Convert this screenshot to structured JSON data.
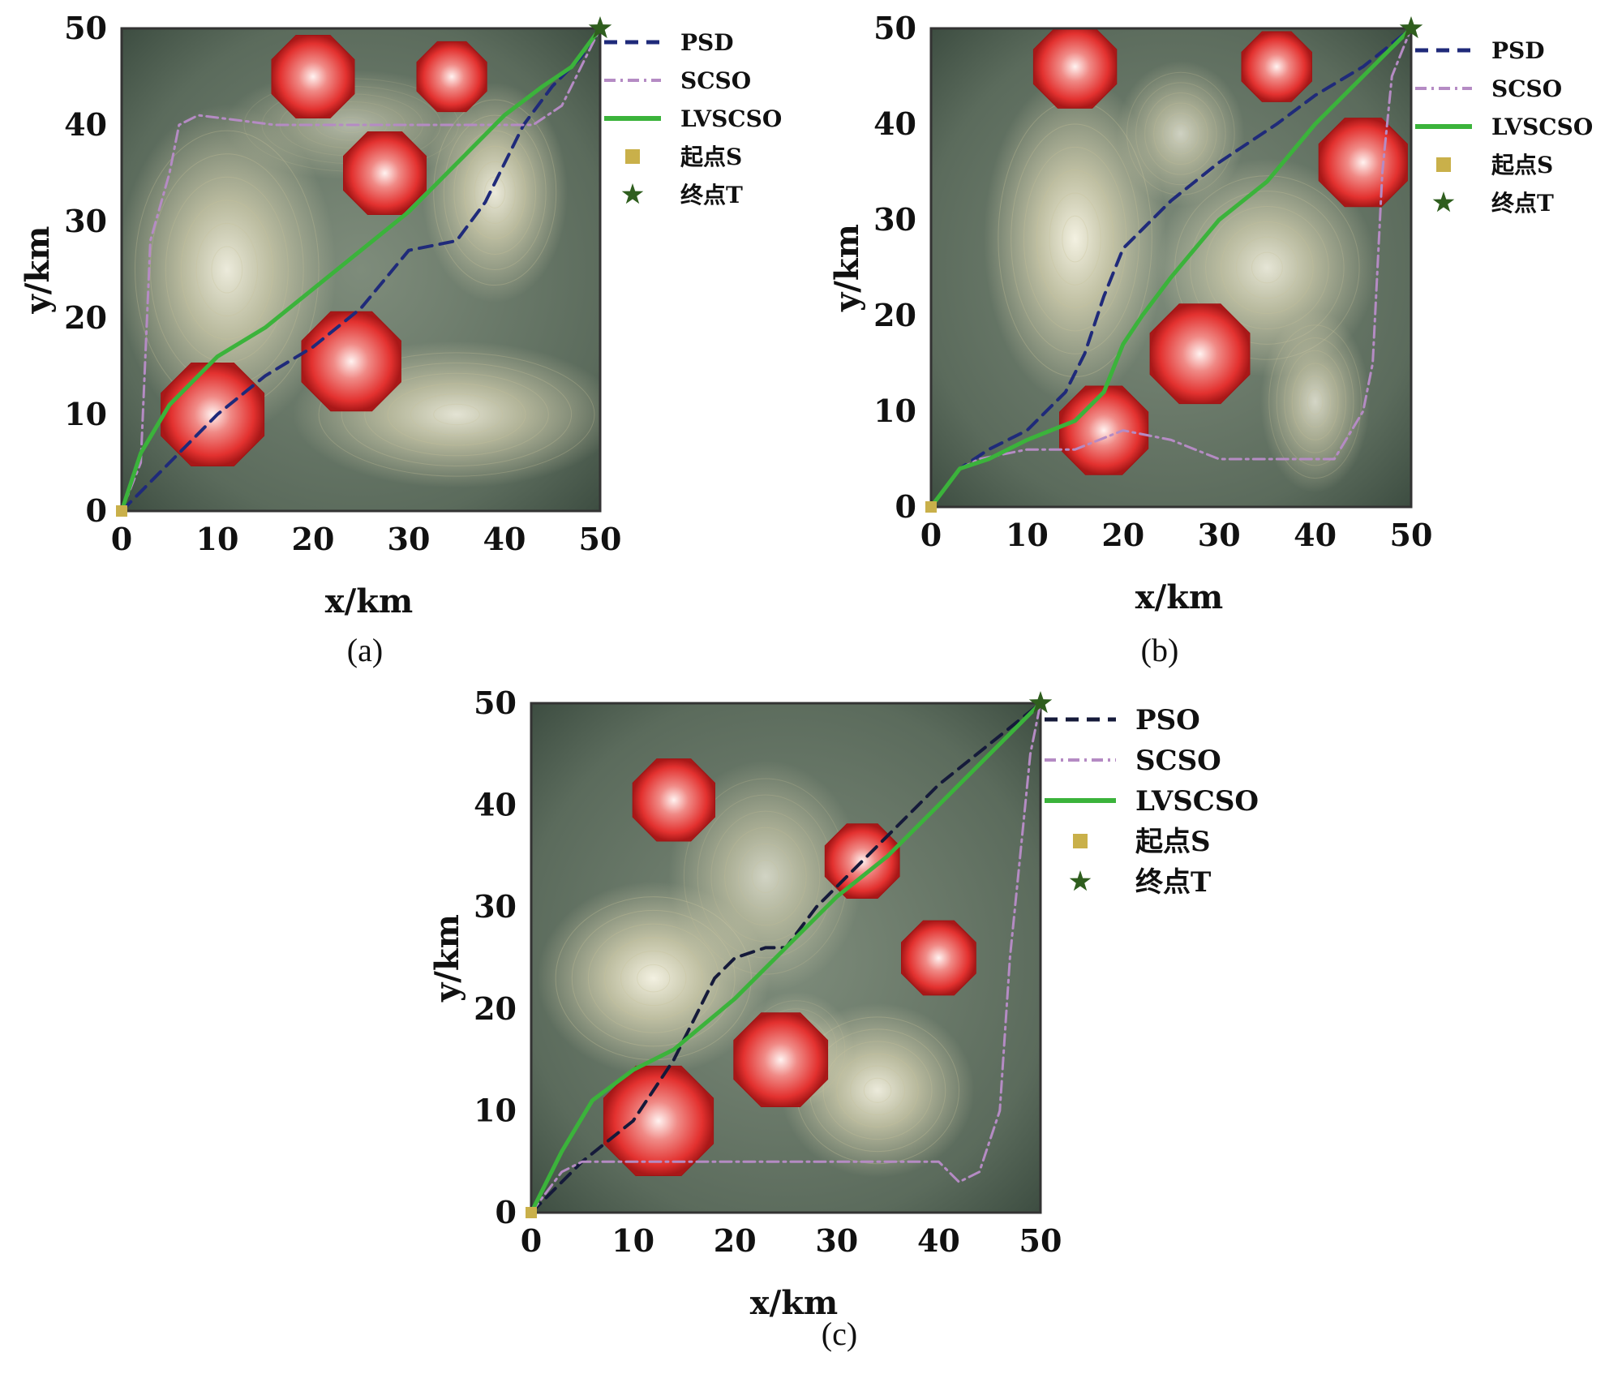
{
  "figure": {
    "panel_labels": [
      "(a)",
      "(b)",
      "(c)"
    ]
  },
  "colors": {
    "psd_line": "#1f2a7a",
    "pso_line": "#151a3a",
    "scso_line": "#b58bc4",
    "lvscso_line": "#3bb33b",
    "start_marker": "#c9b04a",
    "end_marker": "#2f5e1e",
    "threat_fill": "#e3312f",
    "terrain_dark": "#3e4e42",
    "terrain_light": "#e2dcba"
  },
  "icons": {
    "start": "square-marker",
    "end": "star-marker"
  },
  "chart_data": [
    {
      "type": "line",
      "panel": "(a)",
      "xlabel": "x/km",
      "ylabel": "y/km",
      "xlim": [
        0,
        50
      ],
      "ylim": [
        0,
        50
      ],
      "xticks": [
        "0",
        "10",
        "20",
        "30",
        "40",
        "50"
      ],
      "yticks": [
        "0",
        "10",
        "20",
        "30",
        "40",
        "50"
      ],
      "legend_position": "right",
      "legend": [
        "PSD",
        "SCSO",
        "LVSCSO",
        "起点S",
        "终点T"
      ],
      "series": [
        {
          "name": "PSD",
          "style": "dashed",
          "x": [
            0,
            5,
            10,
            15,
            20,
            25,
            30,
            35,
            38,
            42,
            45,
            48,
            50
          ],
          "y": [
            0,
            5,
            10,
            14,
            17,
            21,
            27,
            28,
            32,
            40,
            44,
            47,
            50
          ]
        },
        {
          "name": "SCSO",
          "style": "dashdot",
          "x": [
            0,
            2,
            3,
            5,
            6,
            8,
            16,
            22,
            30,
            37,
            43,
            46,
            48,
            50
          ],
          "y": [
            0,
            5,
            28,
            35,
            40,
            41,
            40,
            40,
            40,
            40,
            40,
            42,
            46,
            50
          ]
        },
        {
          "name": "LVSCSO",
          "style": "solid",
          "x": [
            0,
            2,
            5,
            10,
            15,
            20,
            25,
            30,
            35,
            40,
            44,
            47,
            50
          ],
          "y": [
            0,
            6,
            11,
            16,
            19,
            23,
            27,
            31,
            36,
            41,
            44,
            46,
            50
          ]
        }
      ],
      "start": {
        "label": "起点S",
        "x": 0,
        "y": 0
      },
      "end": {
        "label": "终点T",
        "x": 50,
        "y": 50
      },
      "threats": [
        {
          "x": 20,
          "y": 45,
          "r": 4.5
        },
        {
          "x": 34.5,
          "y": 45,
          "r": 3.8
        },
        {
          "x": 27.5,
          "y": 35,
          "r": 4.5
        },
        {
          "x": 24,
          "y": 15.5,
          "r": 5.4
        },
        {
          "x": 9.5,
          "y": 10,
          "r": 5.6
        }
      ],
      "terrain_peaks": [
        {
          "x": 11,
          "y": 25,
          "sx": 6,
          "sy": 9,
          "h": 0.9
        },
        {
          "x": 39,
          "y": 33,
          "sx": 4,
          "sy": 6,
          "h": 0.9
        },
        {
          "x": 35,
          "y": 10,
          "sx": 9,
          "sy": 4,
          "h": 0.85
        },
        {
          "x": 24,
          "y": 40,
          "sx": 7,
          "sy": 3,
          "h": 0.5
        }
      ]
    },
    {
      "type": "line",
      "panel": "(b)",
      "xlabel": "x/km",
      "ylabel": "y/km",
      "xlim": [
        0,
        50
      ],
      "ylim": [
        0,
        50
      ],
      "xticks": [
        "0",
        "10",
        "20",
        "30",
        "40",
        "50"
      ],
      "yticks": [
        "0",
        "10",
        "20",
        "30",
        "40",
        "50"
      ],
      "legend_position": "right",
      "legend": [
        "PSD",
        "SCSO",
        "LVSCSO",
        "起点S",
        "终点T"
      ],
      "series": [
        {
          "name": "PSD",
          "style": "dashed",
          "x": [
            0,
            3,
            6,
            10,
            14,
            16,
            18,
            20,
            22,
            25,
            30,
            36,
            40,
            45,
            50
          ],
          "y": [
            0,
            4,
            6,
            8,
            12,
            16,
            22,
            27,
            29,
            32,
            36,
            40,
            43,
            46,
            50
          ]
        },
        {
          "name": "SCSO",
          "style": "dashdot",
          "x": [
            0,
            3,
            5,
            10,
            15,
            20,
            25,
            30,
            35,
            42,
            45,
            46,
            47,
            48,
            50
          ],
          "y": [
            0,
            4,
            5,
            6,
            6,
            8,
            7,
            5,
            5,
            5,
            10,
            15,
            35,
            45,
            50
          ]
        },
        {
          "name": "LVSCSO",
          "style": "solid",
          "x": [
            0,
            3,
            6,
            10,
            15,
            18,
            20,
            22,
            25,
            30,
            35,
            40,
            45,
            50
          ],
          "y": [
            0,
            4,
            5,
            7,
            9,
            12,
            17,
            20,
            24,
            30,
            34,
            40,
            45,
            50
          ]
        }
      ],
      "start": {
        "label": "起点S",
        "x": 0,
        "y": 0
      },
      "end": {
        "label": "终点T",
        "x": 50,
        "y": 50
      },
      "threats": [
        {
          "x": 15,
          "y": 46,
          "r": 4.5
        },
        {
          "x": 36,
          "y": 46,
          "r": 3.8
        },
        {
          "x": 45,
          "y": 36,
          "r": 4.8
        },
        {
          "x": 28,
          "y": 16,
          "r": 5.4
        },
        {
          "x": 18,
          "y": 8,
          "r": 4.8
        }
      ],
      "terrain_peaks": [
        {
          "x": 15,
          "y": 28,
          "sx": 5,
          "sy": 9,
          "h": 0.95
        },
        {
          "x": 35,
          "y": 25,
          "sx": 6,
          "sy": 6,
          "h": 0.85
        },
        {
          "x": 40,
          "y": 11,
          "sx": 3,
          "sy": 5,
          "h": 0.75
        },
        {
          "x": 26,
          "y": 39,
          "sx": 3.5,
          "sy": 4,
          "h": 0.7
        }
      ]
    },
    {
      "type": "line",
      "panel": "(c)",
      "xlabel": "x/km",
      "ylabel": "y/km",
      "xlim": [
        0,
        50
      ],
      "ylim": [
        0,
        50
      ],
      "xticks": [
        "0",
        "10",
        "20",
        "30",
        "40",
        "50"
      ],
      "yticks": [
        "0",
        "10",
        "20",
        "30",
        "40",
        "50"
      ],
      "legend_position": "right",
      "legend": [
        "PSO",
        "SCSO",
        "LVSCSO",
        "起点S",
        "终点T"
      ],
      "series": [
        {
          "name": "PSO",
          "style": "dashed",
          "x": [
            0,
            5,
            10,
            14,
            16,
            18,
            20,
            23,
            25,
            28,
            31,
            35,
            40,
            45,
            50
          ],
          "y": [
            0,
            5,
            9,
            15,
            19,
            23,
            25,
            26,
            26,
            30,
            33,
            37,
            42,
            46,
            50
          ]
        },
        {
          "name": "SCSO",
          "style": "dashdot",
          "x": [
            0,
            3,
            5,
            10,
            15,
            25,
            35,
            40,
            42,
            44,
            46,
            47,
            48,
            49,
            50
          ],
          "y": [
            0,
            4,
            5,
            5,
            5,
            5,
            5,
            5,
            3,
            4,
            10,
            25,
            35,
            45,
            50
          ]
        },
        {
          "name": "LVSCSO",
          "style": "solid",
          "x": [
            0,
            3,
            6,
            10,
            14,
            20,
            25,
            30,
            35,
            40,
            45,
            50
          ],
          "y": [
            0,
            6,
            11,
            14,
            16,
            21,
            26,
            31,
            35,
            40,
            45,
            50
          ]
        }
      ],
      "start": {
        "label": "起点S",
        "x": 0,
        "y": 0
      },
      "end": {
        "label": "终点T",
        "x": 50,
        "y": 50
      },
      "threats": [
        {
          "x": 14,
          "y": 40.5,
          "r": 4.2
        },
        {
          "x": 32.5,
          "y": 34.5,
          "r": 3.8
        },
        {
          "x": 40,
          "y": 25,
          "r": 3.8
        },
        {
          "x": 24.5,
          "y": 15,
          "r": 4.8
        },
        {
          "x": 12.5,
          "y": 9,
          "r": 5.6
        }
      ],
      "terrain_peaks": [
        {
          "x": 12,
          "y": 23,
          "sx": 6,
          "sy": 5,
          "h": 0.95
        },
        {
          "x": 34,
          "y": 12,
          "sx": 5,
          "sy": 4.5,
          "h": 0.9
        },
        {
          "x": 23,
          "y": 33,
          "sx": 5,
          "sy": 6,
          "h": 0.7
        },
        {
          "x": 26,
          "y": 16,
          "sx": 3,
          "sy": 3,
          "h": 0.6
        }
      ]
    }
  ]
}
